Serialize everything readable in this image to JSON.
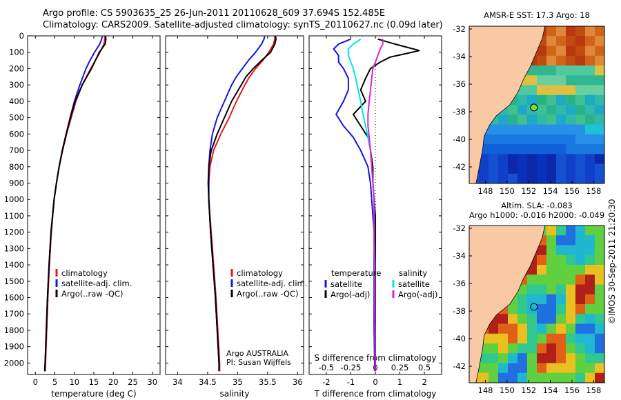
{
  "header": {
    "line1": "Argo profile: CS 5903635_25 26-Jun-2011 20110628_609 37.694S 152.485E",
    "line2": "Climatology: CARS2009. Satellite-adjusted climatology: synTS_20110627.nc (0.09d later)"
  },
  "watermark": "©IMOS 30-Sep-2011 21:20:30",
  "colors": {
    "climatology": "#e8141b",
    "satellite": "#1414e0",
    "argo": "#000000",
    "sat_salinity": "#00e5e5",
    "argo_salinity": "#e020d8",
    "land": "#f9c9a5"
  },
  "chart_data": [
    {
      "id": "temperature",
      "type": "line",
      "xlabel": "temperature (deg C)",
      "ylabel": "",
      "xlim": [
        -2,
        32
      ],
      "ylim": [
        2070,
        0
      ],
      "xticks": [
        "0",
        "5",
        "10",
        "15",
        "20",
        "25",
        "30"
      ],
      "xtick_values": [
        0,
        5,
        10,
        15,
        20,
        25,
        30
      ],
      "ytick_values": [
        0,
        100,
        200,
        300,
        400,
        500,
        600,
        700,
        800,
        900,
        1000,
        1100,
        1200,
        1300,
        1400,
        1500,
        1600,
        1700,
        1800,
        1900,
        2000
      ],
      "yticks": [
        "0",
        "100",
        "200",
        "300",
        "400",
        "500",
        "600",
        "700",
        "800",
        "900",
        "1000",
        "1100",
        "1200",
        "1300",
        "1400",
        "1500",
        "1600",
        "1700",
        "1800",
        "1900",
        "2000"
      ],
      "legend": [
        "climatology",
        "satellite-adj. clim.",
        "Argo(..raw -QC)"
      ],
      "series": [
        {
          "name": "climatology",
          "depth": [
            0,
            20,
            50,
            100,
            150,
            200,
            300,
            400,
            500,
            600,
            700,
            800,
            900,
            1000,
            1200,
            1400,
            1600,
            1800,
            2000,
            2050
          ],
          "values": [
            17.8,
            17.8,
            17.6,
            16.6,
            15.4,
            14.2,
            12.0,
            10.4,
            9.2,
            8.0,
            7.0,
            6.1,
            5.4,
            4.8,
            4.1,
            3.6,
            3.2,
            2.9,
            2.6,
            2.5
          ]
        },
        {
          "name": "satellite-adj. clim.",
          "depth": [
            0,
            20,
            50,
            100,
            150,
            200,
            300,
            400,
            500,
            600,
            700,
            800,
            900,
            1000,
            1200,
            1400,
            1600,
            1800,
            2000,
            2050
          ],
          "values": [
            17.2,
            17.0,
            16.5,
            15.2,
            14.0,
            13.0,
            11.4,
            10.0,
            8.9,
            7.9,
            6.9,
            6.1,
            5.4,
            4.8,
            4.0,
            3.5,
            3.1,
            2.8,
            2.5,
            2.4
          ]
        },
        {
          "name": "Argo(..raw -QC)",
          "depth": [
            0,
            20,
            50,
            100,
            150,
            200,
            300,
            400,
            500,
            600,
            700,
            800,
            900,
            1000,
            1200,
            1400,
            1600,
            1800,
            2000,
            2050
          ],
          "values": [
            18.0,
            18.1,
            17.9,
            16.4,
            15.4,
            14.4,
            12.0,
            10.2,
            9.0,
            7.9,
            6.9,
            6.1,
            5.4,
            4.8,
            4.0,
            3.5,
            3.1,
            2.8,
            2.5,
            2.4
          ]
        }
      ]
    },
    {
      "id": "salinity",
      "type": "line",
      "xlabel": "salinity",
      "xlim": [
        33.8,
        36.1
      ],
      "ylim": [
        2070,
        0
      ],
      "xticks": [
        "34",
        "34.5",
        "35",
        "35.5",
        "36"
      ],
      "xtick_values": [
        34,
        34.5,
        35,
        35.5,
        36
      ],
      "ytick_values": [
        0,
        100,
        200,
        300,
        400,
        500,
        600,
        700,
        800,
        900,
        1000,
        1100,
        1200,
        1300,
        1400,
        1500,
        1600,
        1700,
        1800,
        1900,
        2000
      ],
      "legend": [
        "climatology",
        "satellite-adj. clim.",
        "Argo(..raw -QC)"
      ],
      "annotation": [
        "Argo AUSTRALIA",
        "PI: Susan Wijffels"
      ],
      "series": [
        {
          "name": "climatology",
          "depth": [
            0,
            20,
            50,
            100,
            150,
            200,
            250,
            300,
            400,
            500,
            600,
            700,
            800,
            900,
            1000,
            1200,
            1400,
            1600,
            1800,
            2000,
            2050
          ],
          "values": [
            35.62,
            35.62,
            35.6,
            35.52,
            35.42,
            35.3,
            35.2,
            35.12,
            34.98,
            34.86,
            34.72,
            34.6,
            34.54,
            34.52,
            34.52,
            34.56,
            34.6,
            34.64,
            34.67,
            34.7,
            34.7
          ]
        },
        {
          "name": "satellite-adj. clim.",
          "depth": [
            0,
            20,
            50,
            100,
            150,
            200,
            250,
            300,
            400,
            500,
            600,
            700,
            800,
            900,
            1000,
            1200,
            1400,
            1600,
            1800,
            2000,
            2050
          ],
          "values": [
            35.45,
            35.44,
            35.4,
            35.3,
            35.18,
            35.08,
            34.98,
            34.9,
            34.78,
            34.66,
            34.58,
            34.54,
            34.52,
            34.52,
            34.52,
            34.55,
            34.59,
            34.63,
            34.66,
            34.69,
            34.69
          ]
        },
        {
          "name": "Argo(..raw -QC)",
          "depth": [
            0,
            20,
            50,
            100,
            150,
            200,
            250,
            300,
            400,
            500,
            600,
            700,
            800,
            900,
            1000,
            1200,
            1400,
            1600,
            1800,
            2000,
            2050
          ],
          "values": [
            35.63,
            35.64,
            35.62,
            35.55,
            35.4,
            35.26,
            35.14,
            35.06,
            34.9,
            34.78,
            34.66,
            34.56,
            34.52,
            34.51,
            34.52,
            34.55,
            34.59,
            34.63,
            34.66,
            34.69,
            34.69
          ]
        }
      ]
    },
    {
      "id": "difference",
      "type": "line",
      "xlabel": "T difference from climatology",
      "xlabel2": "S difference from climatology",
      "xlim": [
        -2.7,
        2.7
      ],
      "ylim": [
        2070,
        0
      ],
      "xticks": [
        "-2",
        "-1",
        "0",
        "1",
        "2"
      ],
      "xtick_values": [
        -2,
        -1,
        0,
        1,
        2
      ],
      "xticks_s": [
        "-0.5",
        "-0.25",
        "0",
        "0.25",
        "0.5"
      ],
      "xtick_s_positions": [
        -2,
        -1,
        0,
        1,
        2
      ],
      "ytick_values": [
        0,
        100,
        200,
        300,
        400,
        500,
        600,
        700,
        800,
        900,
        1000,
        1100,
        1200,
        1300,
        1400,
        1500,
        1600,
        1700,
        1800,
        1900,
        2000
      ],
      "legend_temperature": {
        "title": "temperature",
        "items": [
          "satellite",
          "Argo(-adj)"
        ]
      },
      "legend_salinity": {
        "title": "salinity",
        "items": [
          "satellite",
          "Argo(-adj)"
        ]
      },
      "series": [
        {
          "name": "T satellite",
          "depth": [
            20,
            50,
            80,
            120,
            160,
            200,
            260,
            330,
            400,
            480,
            550,
            620,
            700,
            800,
            900,
            1000,
            1100,
            1200,
            1400,
            1600,
            1800,
            2000,
            2050
          ],
          "values": [
            -1.0,
            -1.5,
            -1.7,
            -1.5,
            -1.5,
            -1.3,
            -1.1,
            -1.1,
            -1.3,
            -1.6,
            -1.3,
            -0.9,
            -0.6,
            -0.3,
            -0.2,
            -0.15,
            -0.1,
            -0.05,
            -0.05,
            -0.05,
            -0.05,
            -0.03,
            -0.03
          ]
        },
        {
          "name": "T Argo(-adj)",
          "depth": [
            20,
            50,
            70,
            90,
            110,
            130,
            160,
            200,
            260,
            330,
            400,
            480,
            550,
            620,
            700,
            800,
            900,
            1000,
            1100,
            1200,
            1400,
            1600,
            1800,
            2000,
            2050
          ],
          "values": [
            0.1,
            0.8,
            1.3,
            1.8,
            1.2,
            0.6,
            0.2,
            -0.2,
            -0.4,
            -0.6,
            -0.4,
            -0.9,
            -0.6,
            -0.3,
            -0.2,
            -0.1,
            -0.1,
            -0.05,
            0.0,
            0.0,
            0.0,
            0.0,
            0.0,
            0.0,
            0.0
          ]
        },
        {
          "name": "S satellite",
          "depth": [
            20,
            50,
            80,
            120,
            160,
            200,
            260,
            330,
            400,
            480,
            550,
            620,
            700,
            800,
            900,
            1000,
            1200,
            1400,
            1600,
            1800,
            2000,
            2050
          ],
          "values": [
            -0.6,
            -0.9,
            -1.1,
            -1.1,
            -1.0,
            -0.9,
            -0.8,
            -0.7,
            -0.6,
            -0.5,
            -0.4,
            -0.3,
            -0.2,
            -0.15,
            -0.1,
            -0.05,
            -0.05,
            -0.02,
            -0.02,
            -0.01,
            -0.01,
            -0.01
          ]
        },
        {
          "name": "S Argo(-adj)",
          "depth": [
            20,
            50,
            80,
            120,
            160,
            200,
            260,
            330,
            400,
            480,
            550,
            620,
            700,
            800,
            900,
            1000,
            1200,
            1400,
            1600,
            1800,
            2000,
            2050
          ],
          "values": [
            0.3,
            0.3,
            0.2,
            0.1,
            0.0,
            -0.1,
            -0.15,
            -0.2,
            -0.25,
            -0.3,
            -0.3,
            -0.25,
            -0.2,
            -0.15,
            -0.1,
            -0.05,
            -0.05,
            -0.03,
            -0.02,
            -0.01,
            -0.01,
            -0.01
          ]
        }
      ]
    },
    {
      "id": "sst_map",
      "type": "heatmap",
      "title": "AMSR-E SST: 17.3 Argo: 18",
      "xlim": [
        146.5,
        159
      ],
      "ylim": [
        -43.2,
        -31.8
      ],
      "xticks": [
        "148",
        "150",
        "152",
        "154",
        "156",
        "158"
      ],
      "xtick_values": [
        148,
        150,
        152,
        154,
        156,
        158
      ],
      "yticks": [
        "-32",
        "-34",
        "-36",
        "-38",
        "-40",
        "-42"
      ],
      "ytick_values": [
        -32,
        -34,
        -36,
        -38,
        -40,
        -42
      ],
      "argo_position": {
        "lon": 152.485,
        "lat": -37.694
      }
    },
    {
      "id": "sla_map",
      "type": "heatmap",
      "title": "Altim. SLA: -0.083",
      "subtitle": "Argo h1000: -0.016 h2000: -0.049",
      "xlim": [
        146.5,
        159
      ],
      "ylim": [
        -43.2,
        -31.8
      ],
      "xticks": [
        "148",
        "150",
        "152",
        "154",
        "156",
        "158"
      ],
      "xtick_values": [
        148,
        150,
        152,
        154,
        156,
        158
      ],
      "yticks": [
        "-32",
        "-34",
        "-36",
        "-38",
        "-40",
        "-42"
      ],
      "ytick_values": [
        -32,
        -34,
        -36,
        -38,
        -40,
        -42
      ],
      "argo_position": {
        "lon": 152.485,
        "lat": -37.694
      }
    }
  ]
}
